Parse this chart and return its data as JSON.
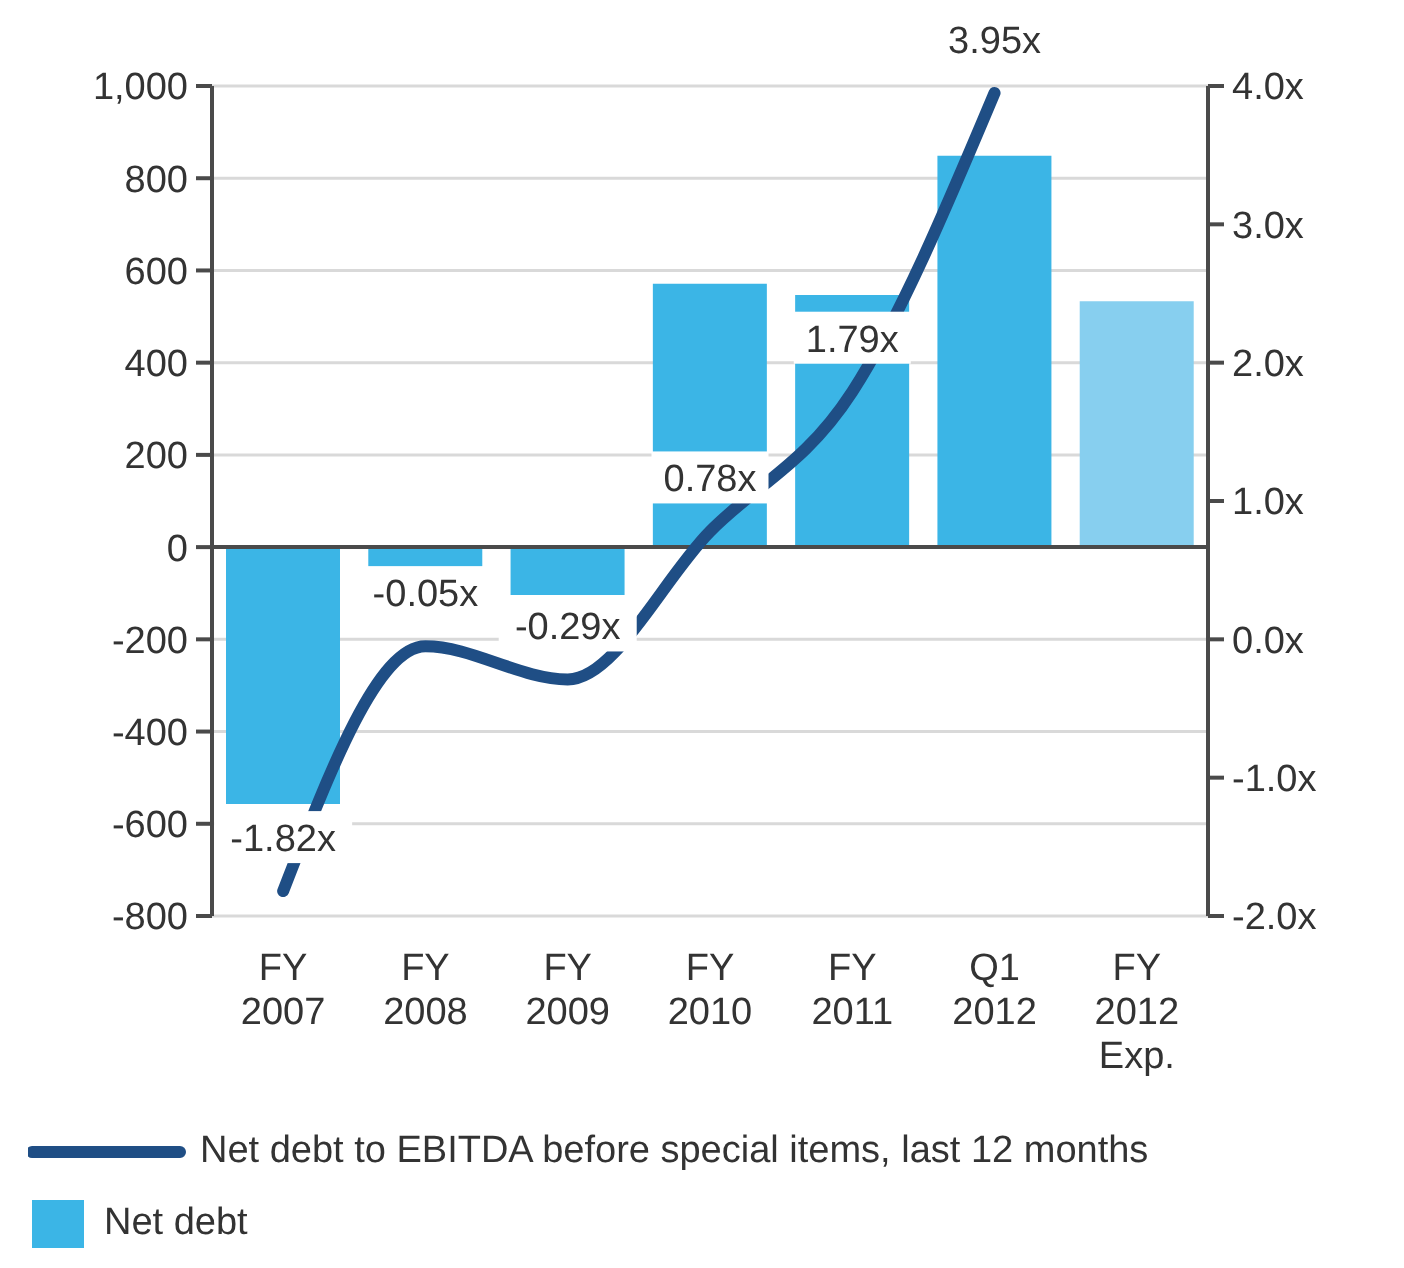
{
  "chart_data": {
    "type": "bar",
    "categories": [
      "FY 2007",
      "FY 2008",
      "FY 2009",
      "FY 2010",
      "FY 2011",
      "Q1 2012",
      "FY 2012 Exp."
    ],
    "series": [
      {
        "name": "Net debt to EBITDA before special items, last 12 months",
        "type": "line",
        "axis": "y2",
        "color": "#1f4e85",
        "values": [
          -1.82,
          -0.05,
          -0.29,
          0.78,
          1.79,
          3.95,
          null
        ],
        "value_labels": [
          "-1.82x",
          "-0.05x",
          "-0.29x",
          "0.78x",
          "1.79x",
          "3.95x",
          null
        ]
      },
      {
        "name": "Net debt",
        "color": "#3bb5e6",
        "colors": [
          "#3bb5e6",
          "#3bb5e6",
          "#3bb5e6",
          "#3bb5e6",
          "#3bb5e6",
          "#3bb5e6",
          "#87cfef"
        ],
        "values": [
          -557,
          -42,
          -104,
          571,
          547,
          849,
          533
        ]
      }
    ],
    "ylim": [
      -800,
      1000
    ],
    "yticks": [
      -800,
      -600,
      -400,
      -200,
      0,
      200,
      400,
      600,
      800,
      {
        "value": 1000,
        "label": "1,000"
      }
    ],
    "y2lim": [
      -2,
      4
    ],
    "y2ticks": [
      {
        "value": -2,
        "label": "-2.0x"
      },
      {
        "value": -1,
        "label": "-1.0x"
      },
      {
        "value": 0,
        "label": "0.0x"
      },
      {
        "value": 1,
        "label": "1.0x"
      },
      {
        "value": 2,
        "label": "2.0x"
      },
      {
        "value": 3,
        "label": "3.0x"
      },
      {
        "value": 4,
        "label": "4.0x"
      }
    ],
    "ref_lines": [
      {
        "axis": "y",
        "value": 0,
        "color": "#4a4a4a"
      }
    ],
    "grid": "y",
    "legend": "bottom"
  }
}
